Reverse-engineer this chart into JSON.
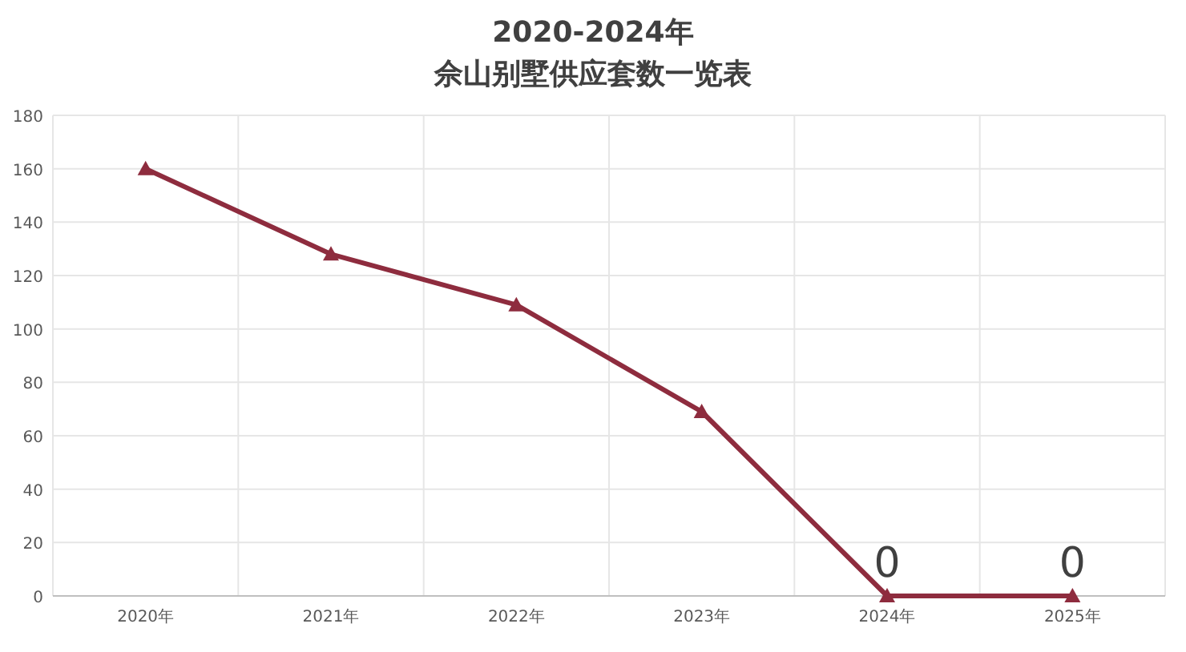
{
  "chart_data": {
    "type": "line",
    "title": "2020-2024年",
    "subtitle": "佘山别墅供应套数一览表",
    "categories": [
      "2020年",
      "2021年",
      "2022年",
      "2023年",
      "2024年",
      "2025年"
    ],
    "series": [
      {
        "color": "#8e2c3e",
        "values": [
          160,
          128,
          109,
          69,
          0,
          0
        ],
        "value_labels": [
          null,
          null,
          null,
          null,
          "0",
          "0"
        ]
      }
    ],
    "ylim": [
      0,
      180
    ],
    "yticks": [
      0,
      20,
      40,
      60,
      80,
      100,
      120,
      140,
      160,
      180
    ],
    "grid": true,
    "marker": "triangle",
    "line_style": "solid"
  }
}
